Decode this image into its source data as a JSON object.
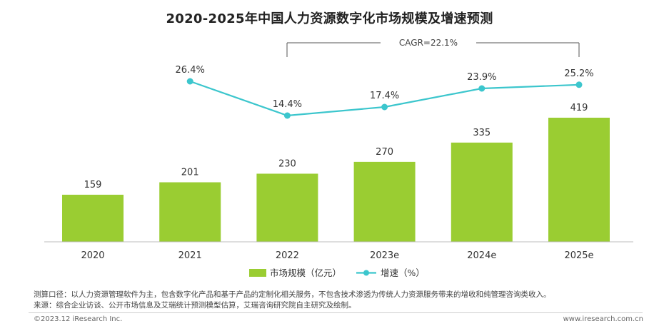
{
  "title": "2020-2025年中国人力资源数字化市场规模及增速预测",
  "cagr_label": "CAGR=22.1%",
  "chart_data": {
    "type": "bar",
    "categories": [
      "2020",
      "2021",
      "2022",
      "2023e",
      "2024e",
      "2025e"
    ],
    "series": [
      {
        "name": "市场规模（亿元）",
        "type": "bar",
        "values": [
          159,
          201,
          230,
          270,
          335,
          419
        ],
        "color": "#9acd32"
      },
      {
        "name": "增速（%）",
        "type": "line",
        "values": [
          null,
          26.4,
          14.4,
          17.4,
          23.9,
          25.2
        ],
        "color": "#3cc6cd"
      }
    ],
    "value_labels": [
      "159",
      "201",
      "230",
      "270",
      "335",
      "419"
    ],
    "growth_labels": [
      "",
      "26.4%",
      "14.4%",
      "17.4%",
      "23.9%",
      "25.2%"
    ],
    "legend_position": "bottom",
    "grid": false
  },
  "notes": {
    "method": "测算口径：以人力资源管理软件为主，包含数字化产品和基于产品的定制化相关服务，不包含技术渗透为传统人力资源服务带来的增收和纯管理咨询类收入。",
    "source": "来源：综合企业访谈、公开市场信息及艾瑞统计预测模型估算，艾瑞咨询研究院自主研究及绘制。"
  },
  "footer": {
    "copyright": "©2023.12 iResearch Inc.",
    "url": "www.iresearch.com.cn"
  }
}
